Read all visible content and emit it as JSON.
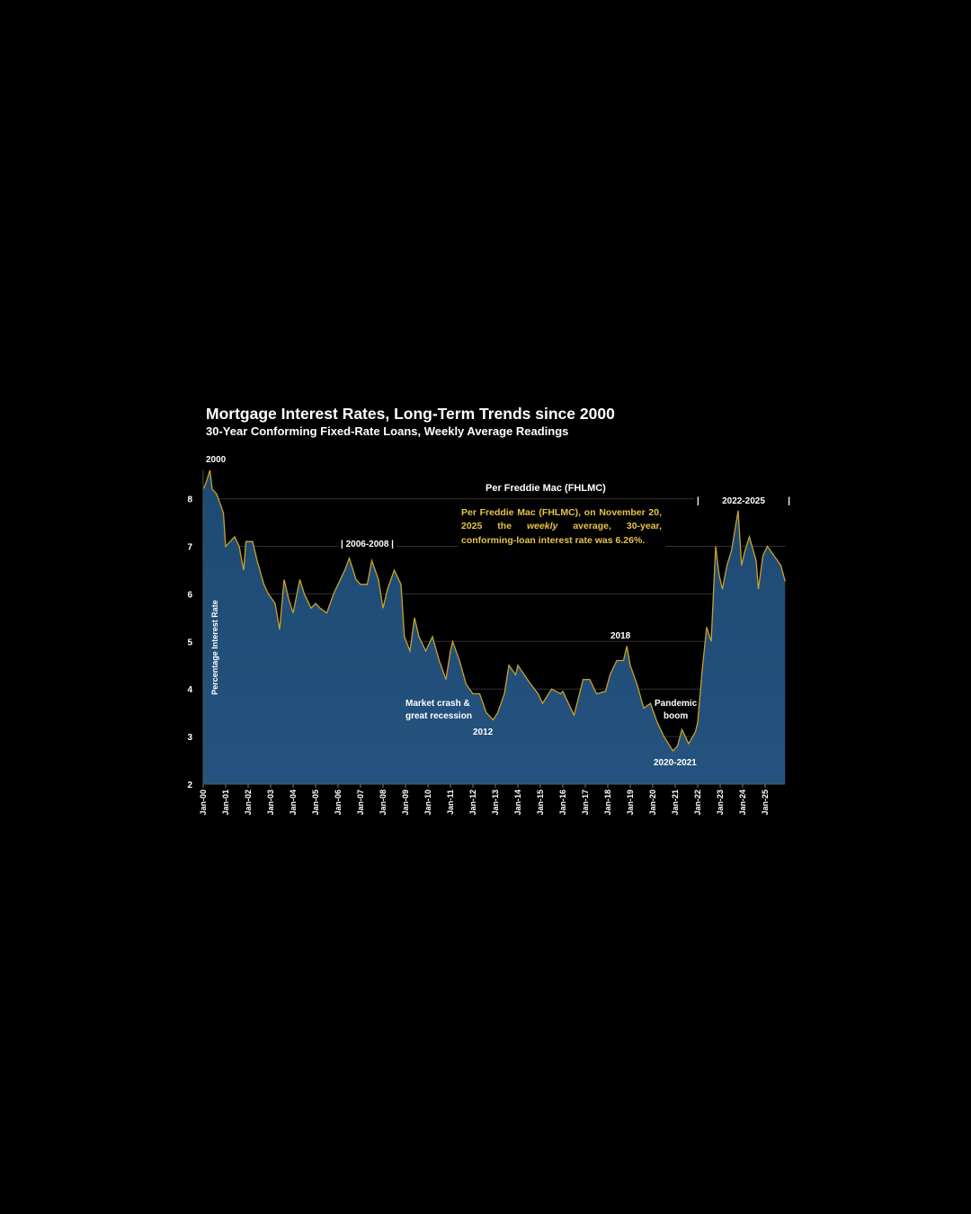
{
  "chart_data": {
    "type": "area",
    "title": "Mortgage Interest Rates, Long-Term Trends since 2000",
    "subtitle": "30-Year Conforming Fixed-Rate Loans, Weekly Average Readings",
    "xlabel": "",
    "ylabel": "Percentage Interest Rate",
    "ylim": [
      2,
      8.6
    ],
    "yticks": [
      "2",
      "3",
      "4",
      "5",
      "6",
      "7",
      "8"
    ],
    "xticks": [
      "Jan-00",
      "Jan-01",
      "Jan-02",
      "Jan-03",
      "Jan-04",
      "Jan-05",
      "Jan-06",
      "Jan-07",
      "Jan-08",
      "Jan-09",
      "Jan-10",
      "Jan-11",
      "Jan-12",
      "Jan-13",
      "Jan-14",
      "Jan-15",
      "Jan-16",
      "Jan-17",
      "Jan-18",
      "Jan-19",
      "Jan-20",
      "Jan-21",
      "Jan-22",
      "Jan-23",
      "Jan-24",
      "Jan-25"
    ],
    "grid": true,
    "colors": {
      "fill": "#1f4e79",
      "line": "#c9a227",
      "note": "#e8c24a"
    },
    "x": [
      2000.0,
      2000.1,
      2000.3,
      2000.4,
      2000.6,
      2000.9,
      2001.0,
      2001.2,
      2001.4,
      2001.6,
      2001.8,
      2001.9,
      2002.2,
      2002.4,
      2002.7,
      2002.9,
      2003.2,
      2003.4,
      2003.6,
      2003.8,
      2004.0,
      2004.3,
      2004.5,
      2004.8,
      2005.0,
      2005.2,
      2005.5,
      2005.8,
      2006.0,
      2006.3,
      2006.5,
      2006.8,
      2007.0,
      2007.3,
      2007.5,
      2007.8,
      2008.0,
      2008.2,
      2008.5,
      2008.8,
      2008.95,
      2009.2,
      2009.4,
      2009.6,
      2009.9,
      2010.2,
      2010.5,
      2010.8,
      2011.0,
      2011.1,
      2011.4,
      2011.7,
      2012.0,
      2012.3,
      2012.6,
      2012.9,
      2013.1,
      2013.4,
      2013.6,
      2013.9,
      2014.0,
      2014.5,
      2014.9,
      2015.1,
      2015.5,
      2015.9,
      2016.0,
      2016.5,
      2016.9,
      2017.2,
      2017.5,
      2017.9,
      2018.1,
      2018.4,
      2018.7,
      2018.85,
      2019.0,
      2019.3,
      2019.6,
      2019.9,
      2020.2,
      2020.5,
      2020.9,
      2021.1,
      2021.3,
      2021.6,
      2021.9,
      2022.0,
      2022.2,
      2022.4,
      2022.6,
      2022.8,
      2022.95,
      2023.1,
      2023.3,
      2023.5,
      2023.8,
      2023.95,
      2024.1,
      2024.3,
      2024.6,
      2024.7,
      2024.9,
      2025.1,
      2025.4,
      2025.7,
      2025.89
    ],
    "y": [
      8.2,
      8.3,
      8.6,
      8.2,
      8.1,
      7.7,
      7.0,
      7.1,
      7.2,
      7.0,
      6.5,
      7.1,
      7.1,
      6.7,
      6.2,
      6.0,
      5.8,
      5.25,
      6.3,
      5.9,
      5.6,
      6.3,
      6.0,
      5.7,
      5.8,
      5.7,
      5.6,
      6.0,
      6.2,
      6.5,
      6.75,
      6.3,
      6.2,
      6.2,
      6.7,
      6.3,
      5.7,
      6.1,
      6.5,
      6.2,
      5.1,
      4.8,
      5.5,
      5.1,
      4.8,
      5.1,
      4.6,
      4.2,
      4.8,
      5.0,
      4.6,
      4.1,
      3.9,
      3.9,
      3.5,
      3.35,
      3.5,
      3.9,
      4.5,
      4.3,
      4.5,
      4.15,
      3.9,
      3.7,
      4.0,
      3.9,
      3.95,
      3.45,
      4.2,
      4.2,
      3.9,
      3.95,
      4.3,
      4.6,
      4.6,
      4.9,
      4.5,
      4.1,
      3.6,
      3.7,
      3.3,
      3.0,
      2.7,
      2.8,
      3.15,
      2.85,
      3.1,
      3.3,
      4.4,
      5.3,
      5.0,
      7.0,
      6.4,
      6.1,
      6.6,
      6.9,
      7.75,
      6.6,
      6.9,
      7.2,
      6.7,
      6.1,
      6.8,
      7.0,
      6.8,
      6.6,
      6.26
    ],
    "annotations": {
      "start_year": "2000",
      "source": "Per Freddie Mac (FHLMC)",
      "note_line1": "Per Freddie Mac (FHLMC), on November 20, 2025 the ",
      "note_em": "weekly",
      "note_line2": " average, 30-year, conforming-loan interest rate was 6.26%.",
      "period_2006": "|  2006-2008  |",
      "year_2018": "2018",
      "crash_line1": "Market crash &",
      "crash_line2": "great recession",
      "year_2012": "2012",
      "pandemic_line1": "Pandemic",
      "pandemic_line2": "boom",
      "period_2020": "2020-2021",
      "period_2022": "2022-2025",
      "bar": "|"
    }
  }
}
